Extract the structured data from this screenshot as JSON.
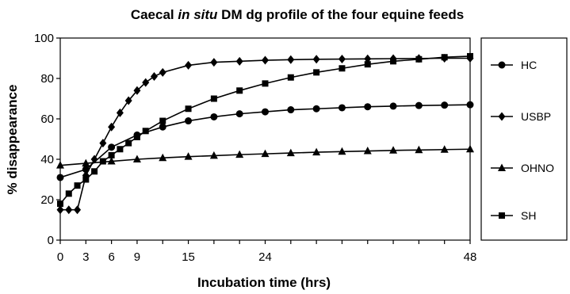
{
  "chart_data": {
    "type": "line",
    "title_parts": [
      "Caecal ",
      "in situ",
      " DM dg profile of the four equine feeds"
    ],
    "xlabel": "Incubation time (hrs)",
    "ylabel": "% disappearance",
    "xlim": [
      0,
      48
    ],
    "ylim": [
      0,
      100
    ],
    "x_ticks": [
      0,
      3,
      6,
      9,
      15,
      24,
      48
    ],
    "y_ticks": [
      0,
      20,
      40,
      60,
      80,
      100
    ],
    "grid": false,
    "legend_position": "right",
    "series": [
      {
        "name": "HC",
        "marker": "circle",
        "x": [
          0,
          3,
          6,
          9,
          12,
          15,
          18,
          21,
          24,
          27,
          30,
          33,
          36,
          39,
          42,
          45,
          48
        ],
        "y": [
          31,
          35,
          46,
          52,
          56,
          59,
          61,
          62.5,
          63.5,
          64.5,
          65,
          65.5,
          66,
          66.3,
          66.6,
          66.8,
          67
        ]
      },
      {
        "name": "USBP",
        "marker": "diamond",
        "x": [
          0,
          1,
          2,
          3,
          4,
          5,
          6,
          7,
          8,
          9,
          10,
          11,
          12,
          15,
          18,
          21,
          24,
          27,
          30,
          33,
          36,
          39,
          42,
          45,
          48
        ],
        "y": [
          15,
          15,
          15,
          32,
          40,
          48,
          56,
          63,
          69,
          74,
          78,
          81,
          83,
          86.5,
          88,
          88.5,
          89,
          89.3,
          89.5,
          89.6,
          89.7,
          89.8,
          89.9,
          90,
          90
        ]
      },
      {
        "name": "OHNO",
        "marker": "triangle",
        "x": [
          0,
          3,
          6,
          9,
          12,
          15,
          18,
          21,
          24,
          27,
          30,
          33,
          36,
          39,
          42,
          45,
          48
        ],
        "y": [
          37,
          38,
          39,
          40,
          40.7,
          41.3,
          41.8,
          42.3,
          42.7,
          43.1,
          43.5,
          43.8,
          44.1,
          44.4,
          44.6,
          44.8,
          45
        ]
      },
      {
        "name": "SH",
        "marker": "square",
        "x": [
          0,
          1,
          2,
          3,
          4,
          5,
          6,
          7,
          8,
          9,
          10,
          12,
          15,
          18,
          21,
          24,
          27,
          30,
          33,
          36,
          39,
          42,
          45,
          48
        ],
        "y": [
          18,
          23,
          27,
          30,
          34,
          39,
          42,
          45,
          48,
          51,
          54,
          59,
          65,
          70,
          74,
          77.5,
          80.5,
          83,
          85,
          87,
          88.5,
          89.5,
          90.5,
          91
        ]
      }
    ]
  }
}
